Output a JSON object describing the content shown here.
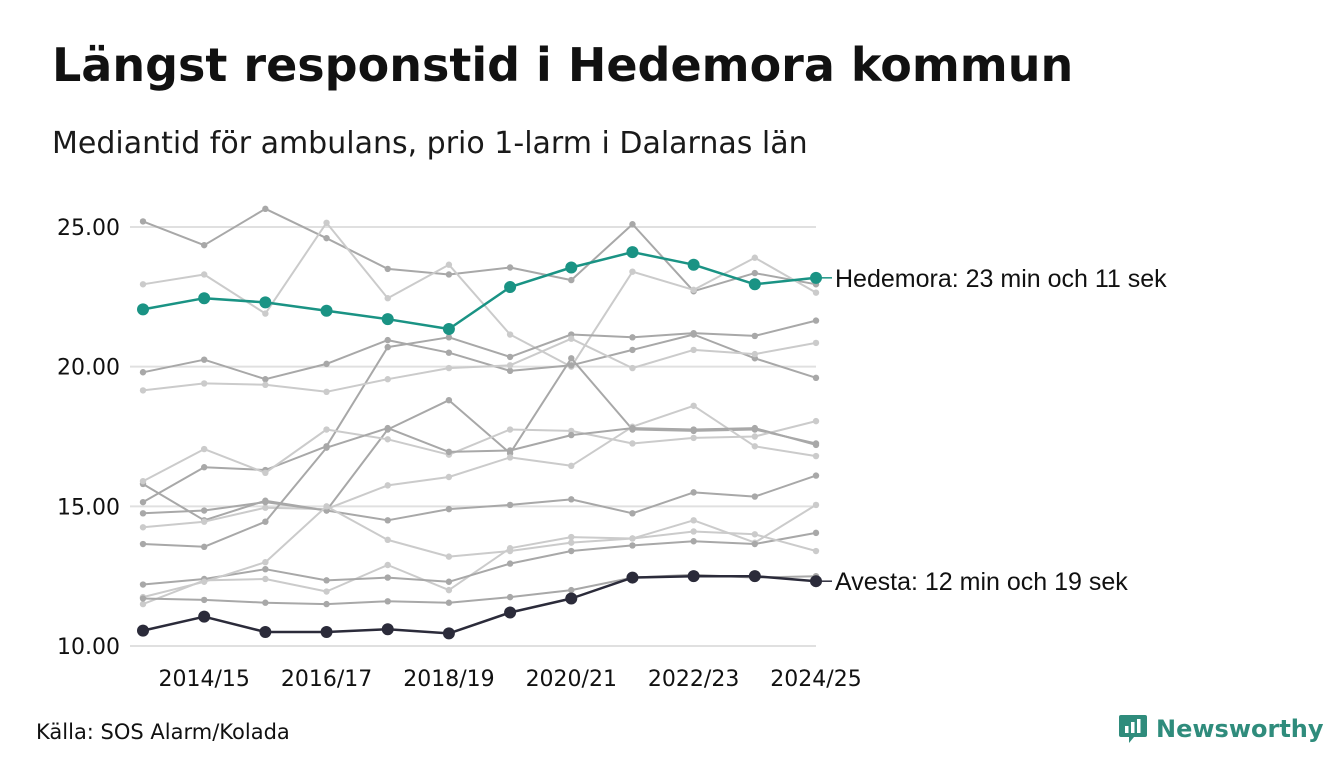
{
  "title": "Längst responstid i Hedemora kommun",
  "subtitle": "Mediantid för ambulans, prio 1-larm i Dalarnas län",
  "source": "Källa: SOS Alarm/Kolada",
  "brand": "Newsworthy",
  "colors": {
    "highlight": "#1a9384",
    "lowlight": "#2b2b3a",
    "background_dark": "#a8a8a8",
    "background_light": "#cbcbcb",
    "grid": "#e0e0e0",
    "brand": "#2f8c7c"
  },
  "chart_data": {
    "type": "line",
    "x": [
      "2013/14",
      "2014/15",
      "2015/16",
      "2016/17",
      "2017/18",
      "2018/19",
      "2019/20",
      "2020/21",
      "2021/22",
      "2022/23",
      "2023/24",
      "2024/25"
    ],
    "x_tick_labels": [
      "2014/15",
      "2016/17",
      "2018/19",
      "2020/21",
      "2022/23",
      "2024/25"
    ],
    "ylim": [
      10,
      25.5
    ],
    "y_ticks": [
      10,
      15,
      20,
      25
    ],
    "y_tick_labels": [
      "10.00",
      "15.00",
      "20.00",
      "25.00"
    ],
    "grid": "horizontal",
    "highlighted": [
      {
        "name": "Hedemora",
        "label": "Hedemora: 23 min och 11 sek",
        "color": "#1a9384",
        "values": [
          22.05,
          22.45,
          22.3,
          22.0,
          21.7,
          21.35,
          22.85,
          23.55,
          24.1,
          23.65,
          22.95,
          23.18
        ]
      },
      {
        "name": "Avesta",
        "label": "Avesta: 12 min och 19 sek",
        "color": "#2b2b3a",
        "values": [
          10.55,
          11.05,
          10.5,
          10.5,
          10.6,
          10.45,
          11.2,
          11.7,
          12.45,
          12.5,
          12.5,
          12.32
        ]
      }
    ],
    "background_series": [
      {
        "tone": "dark",
        "values": [
          25.2,
          24.35,
          25.65,
          24.6,
          23.5,
          23.3,
          23.55,
          23.1,
          25.1,
          22.7,
          23.35,
          22.95
        ]
      },
      {
        "tone": "light",
        "values": [
          22.95,
          23.3,
          21.9,
          25.15,
          22.45,
          23.65,
          21.15,
          20.0,
          23.4,
          22.75,
          23.9,
          22.65
        ]
      },
      {
        "tone": "dark",
        "values": [
          19.8,
          20.25,
          19.55,
          20.1,
          20.95,
          20.5,
          19.85,
          20.05,
          20.6,
          21.15,
          20.3,
          19.6
        ]
      },
      {
        "tone": "dark",
        "values": [
          15.15,
          16.4,
          16.3,
          17.15,
          20.7,
          21.05,
          20.35,
          21.15,
          21.05,
          21.2,
          21.1,
          21.65
        ]
      },
      {
        "tone": "light",
        "values": [
          19.15,
          19.4,
          19.35,
          19.1,
          19.55,
          19.95,
          20.05,
          21.0,
          19.95,
          20.6,
          20.45,
          20.85
        ]
      },
      {
        "tone": "dark",
        "values": [
          15.8,
          14.5,
          15.2,
          14.85,
          17.75,
          18.8,
          16.9,
          20.3,
          17.75,
          17.7,
          17.75,
          17.25
        ]
      },
      {
        "tone": "light",
        "values": [
          15.9,
          17.05,
          16.2,
          17.75,
          17.4,
          16.85,
          17.75,
          17.7,
          17.25,
          17.45,
          17.5,
          18.05
        ]
      },
      {
        "tone": "light",
        "values": [
          14.25,
          14.45,
          14.95,
          14.9,
          15.75,
          16.05,
          16.75,
          16.45,
          17.85,
          18.6,
          17.15,
          16.8
        ]
      },
      {
        "tone": "dark",
        "values": [
          14.75,
          14.85,
          15.15,
          14.85,
          14.5,
          14.9,
          15.05,
          15.25,
          14.75,
          15.5,
          15.35,
          16.1
        ]
      },
      {
        "tone": "dark",
        "values": [
          13.65,
          13.55,
          14.45,
          17.1,
          17.8,
          16.95,
          17.0,
          17.55,
          17.8,
          17.75,
          17.8,
          17.2
        ]
      },
      {
        "tone": "light",
        "values": [
          11.5,
          12.35,
          12.4,
          11.95,
          12.9,
          12.0,
          13.5,
          13.9,
          13.85,
          14.5,
          13.7,
          15.05
        ]
      },
      {
        "tone": "dark",
        "values": [
          12.2,
          12.4,
          12.75,
          12.35,
          12.45,
          12.3,
          12.95,
          13.4,
          13.6,
          13.75,
          13.65,
          14.05
        ]
      },
      {
        "tone": "light",
        "values": [
          11.75,
          12.3,
          13.0,
          15.0,
          13.8,
          13.2,
          13.4,
          13.7,
          13.85,
          14.1,
          14.0,
          13.4
        ]
      },
      {
        "tone": "dark",
        "values": [
          11.7,
          11.65,
          11.55,
          11.5,
          11.6,
          11.55,
          11.75,
          12.0,
          12.45,
          12.55,
          12.45,
          12.5
        ]
      }
    ]
  }
}
